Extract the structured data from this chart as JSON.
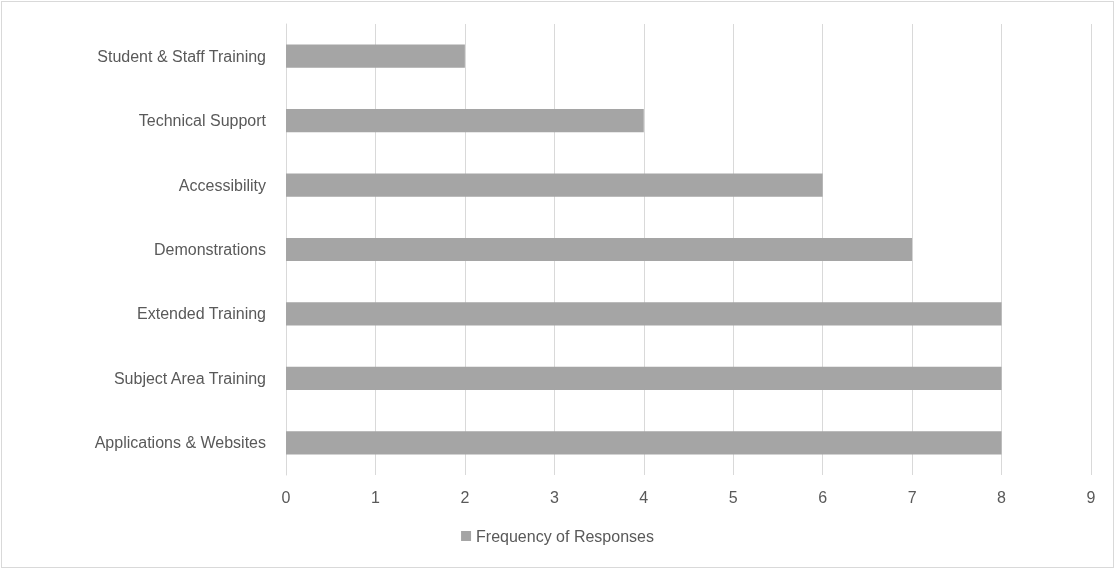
{
  "chart_data": {
    "type": "bar",
    "orientation": "horizontal",
    "categories": [
      "Student & Staff Training",
      "Technical Support",
      "Accessibility",
      "Demonstrations",
      "Extended Training",
      "Subject Area Training",
      "Applications & Websites"
    ],
    "series": [
      {
        "name": "Frequency of Responses",
        "color": "#a5a5a5",
        "values": [
          2,
          4,
          6,
          7,
          8,
          8,
          8
        ]
      }
    ],
    "xlim": [
      0,
      9
    ],
    "xticks": [
      0,
      1,
      2,
      3,
      4,
      5,
      6,
      7,
      8,
      9
    ],
    "grid": "x",
    "legend": "bottom"
  }
}
